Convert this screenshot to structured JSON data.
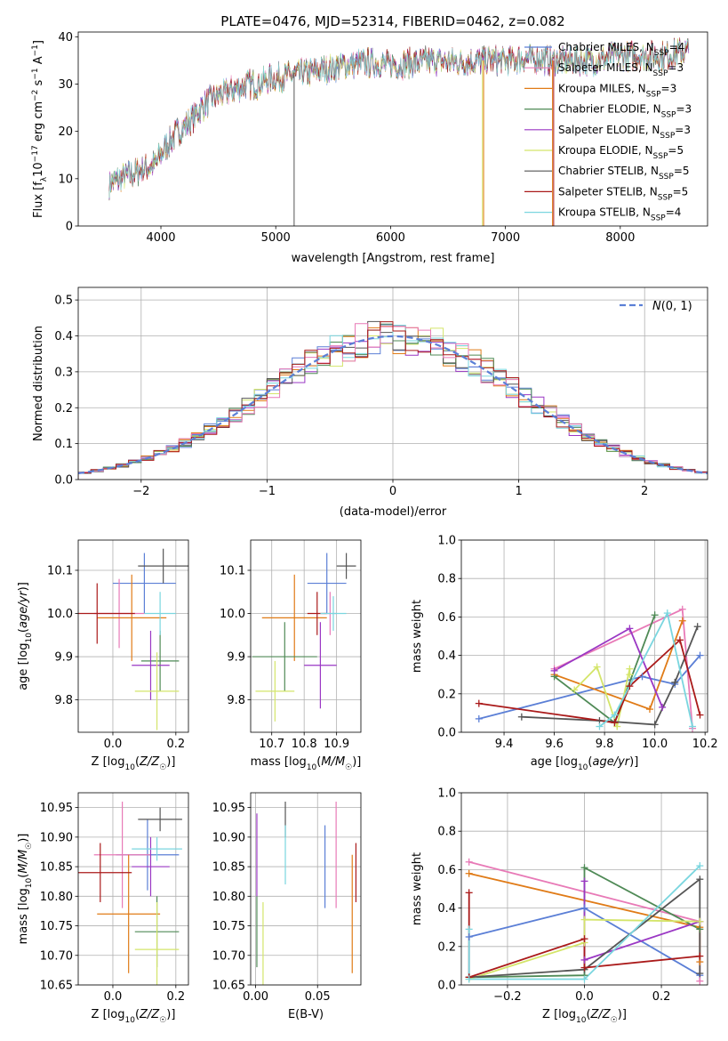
{
  "figure": {
    "title": "PLATE=0476, MJD=52314, FIBERID=0462, z=0.082"
  },
  "colors": {
    "chabrier_miles": "#5b7fd6",
    "salpeter_miles": "#e87ab7",
    "kroupa_miles": "#e07b17",
    "chabrier_elodie": "#4f8a56",
    "salpeter_elodie": "#9a37c4",
    "kroupa_elodie": "#d4e56a",
    "chabrier_stelib": "#555555",
    "salpeter_stelib": "#aa1a1a",
    "kroupa_stelib": "#7ad6df",
    "gauss": "#5b7fd6"
  },
  "chart_data": [
    {
      "id": "spectrum",
      "type": "line",
      "title": "PLATE=0476, MJD=52314, FIBERID=0462, z=0.082",
      "xlabel": "wavelength [Angstrom, rest frame]",
      "ylabel": "Flux [f_λ 10^-17 erg cm^-2 s^-1 A^-1]",
      "xlim": [
        3280,
        8760
      ],
      "ylim": [
        0,
        41
      ],
      "xticks": [
        4000,
        5000,
        6000,
        7000,
        8000
      ],
      "yticks": [
        0,
        10,
        20,
        30,
        40
      ],
      "legend": "top-right",
      "series": [
        {
          "name": "Chabrier MILES, N_SSP=4"
        },
        {
          "name": "Salpeter MILES, N_SSP=3"
        },
        {
          "name": "Kroupa MILES, N_SSP=3"
        },
        {
          "name": "Chabrier ELODIE, N_SSP=3"
        },
        {
          "name": "Salpeter ELODIE, N_SSP=3"
        },
        {
          "name": "Kroupa ELODIE, N_SSP=5"
        },
        {
          "name": "Chabrier STELIB, N_SSP=5"
        },
        {
          "name": "Salpeter STELIB, N_SSP=5"
        },
        {
          "name": "Kroupa STELIB, N_SSP=4"
        }
      ],
      "continuum": {
        "x": [
          3550,
          3650,
          3750,
          3850,
          3950,
          4050,
          4150,
          4250,
          4350,
          4450,
          4550,
          4650,
          4750,
          4850,
          4950,
          5050,
          5200,
          5400,
          5600,
          5800,
          6000,
          6200,
          6400,
          6600,
          6800,
          7000,
          7200,
          7400,
          7600,
          7800,
          8000,
          8200,
          8400,
          8600
        ],
        "y": [
          9,
          10,
          11,
          12,
          13,
          17,
          20,
          22,
          25,
          27,
          28,
          29,
          30,
          30,
          31,
          31.5,
          32,
          33,
          34,
          34.5,
          34,
          34.5,
          35,
          34.5,
          35,
          35,
          35.5,
          35,
          35,
          35,
          36,
          36,
          36,
          37
        ]
      }
    },
    {
      "id": "residuals",
      "type": "histogram",
      "xlabel": "(data-model)/error",
      "ylabel": "Normed distribution",
      "xlim": [
        -2.5,
        2.5
      ],
      "ylim": [
        0,
        0.535
      ],
      "xticks": [
        -2,
        -1,
        0,
        1,
        2
      ],
      "yticks": [
        0.0,
        0.1,
        0.2,
        0.3,
        0.4,
        0.5
      ],
      "grid": true,
      "legend": "top-right",
      "legend_label": "N(0,1)",
      "bin_width": 0.1
    },
    {
      "id": "age_Z",
      "type": "errorbar",
      "xlabel": "Z [log10(Z/Z☉)]",
      "ylabel": "age [log10(age/yr)]",
      "xlim": [
        -0.11,
        0.24
      ],
      "ylim": [
        9.725,
        10.17
      ],
      "xticks": [
        0.0,
        0.2
      ],
      "yticks": [
        9.8,
        9.9,
        10.0,
        10.1
      ],
      "grid": true,
      "points": [
        {
          "s": "chabrier_miles",
          "x": 0.1,
          "xe": 0.1,
          "y": 10.07,
          "ye": 0.07
        },
        {
          "s": "salpeter_miles",
          "x": 0.02,
          "xe": 0.08,
          "y": 10.0,
          "ye": 0.08
        },
        {
          "s": "kroupa_miles",
          "x": 0.06,
          "xe": 0.11,
          "y": 9.99,
          "ye": 0.1
        },
        {
          "s": "chabrier_elodie",
          "x": 0.15,
          "xe": 0.06,
          "y": 9.89,
          "ye": 0.07
        },
        {
          "s": "salpeter_elodie",
          "x": 0.12,
          "xe": 0.06,
          "y": 9.88,
          "ye": 0.08
        },
        {
          "s": "kroupa_elodie",
          "x": 0.14,
          "xe": 0.07,
          "y": 9.82,
          "ye": 0.09
        },
        {
          "s": "chabrier_stelib",
          "x": 0.16,
          "xe": 0.08,
          "y": 10.11,
          "ye": 0.04
        },
        {
          "s": "salpeter_stelib",
          "x": -0.05,
          "xe": 0.12,
          "y": 10.0,
          "ye": 0.07
        },
        {
          "s": "kroupa_stelib",
          "x": 0.15,
          "xe": 0.05,
          "y": 10.0,
          "ye": 0.05
        }
      ]
    },
    {
      "id": "age_mass",
      "type": "errorbar",
      "xlabel": "mass [log10(M/M☉)]",
      "ylabel": "",
      "xlim": [
        10.635,
        10.975
      ],
      "ylim": [
        9.725,
        10.17
      ],
      "xticks": [
        10.7,
        10.8,
        10.9
      ],
      "yticks": [
        9.8,
        9.9,
        10.0,
        10.1
      ],
      "grid": true,
      "points": [
        {
          "s": "chabrier_miles",
          "x": 10.87,
          "xe": 0.06,
          "y": 10.07,
          "ye": 0.07
        },
        {
          "s": "salpeter_miles",
          "x": 10.88,
          "xe": 0.02,
          "y": 10.0,
          "ye": 0.05
        },
        {
          "s": "kroupa_miles",
          "x": 10.77,
          "xe": 0.1,
          "y": 9.99,
          "ye": 0.1
        },
        {
          "s": "chabrier_elodie",
          "x": 10.74,
          "xe": 0.1,
          "y": 9.9,
          "ye": 0.08
        },
        {
          "s": "salpeter_elodie",
          "x": 10.85,
          "xe": 0.05,
          "y": 9.88,
          "ye": 0.1
        },
        {
          "s": "kroupa_elodie",
          "x": 10.71,
          "xe": 0.06,
          "y": 9.82,
          "ye": 0.07
        },
        {
          "s": "chabrier_stelib",
          "x": 10.93,
          "xe": 0.03,
          "y": 10.11,
          "ye": 0.03
        },
        {
          "s": "salpeter_stelib",
          "x": 10.84,
          "xe": 0.03,
          "y": 10.0,
          "ye": 0.05
        },
        {
          "s": "kroupa_stelib",
          "x": 10.89,
          "xe": 0.04,
          "y": 10.0,
          "ye": 0.04
        }
      ]
    },
    {
      "id": "weight_age",
      "type": "line",
      "xlabel": "age [log10(age/yr)]",
      "ylabel": "mass weight",
      "xlim": [
        9.23,
        10.21
      ],
      "ylim": [
        0,
        1
      ],
      "xticks": [
        9.4,
        9.6,
        9.8,
        10.0,
        10.2
      ],
      "yticks": [
        0.0,
        0.2,
        0.4,
        0.6,
        0.8,
        1.0
      ],
      "grid": true,
      "series": [
        {
          "s": "chabrier_miles",
          "x": [
            9.3,
            9.95,
            10.08,
            10.18
          ],
          "y": [
            0.07,
            0.29,
            0.25,
            0.4
          ]
        },
        {
          "s": "salpeter_miles",
          "x": [
            9.6,
            10.11,
            10.15
          ],
          "y": [
            0.33,
            0.64,
            0.02
          ]
        },
        {
          "s": "kroupa_miles",
          "x": [
            9.6,
            9.98,
            10.11
          ],
          "y": [
            0.3,
            0.12,
            0.58
          ]
        },
        {
          "s": "chabrier_elodie",
          "x": [
            9.6,
            9.84,
            10.0
          ],
          "y": [
            0.29,
            0.05,
            0.61
          ]
        },
        {
          "s": "salpeter_elodie",
          "x": [
            9.6,
            9.9,
            10.03
          ],
          "y": [
            0.32,
            0.54,
            0.13
          ]
        },
        {
          "s": "kroupa_elodie",
          "x": [
            9.68,
            9.77,
            9.85,
            9.9,
            9.9
          ],
          "y": [
            0.22,
            0.34,
            0.03,
            0.33,
            0.3
          ]
        },
        {
          "s": "chabrier_stelib",
          "x": [
            9.47,
            9.78,
            10.0,
            10.08,
            10.17
          ],
          "y": [
            0.08,
            0.06,
            0.04,
            0.26,
            0.55
          ]
        },
        {
          "s": "salpeter_stelib",
          "x": [
            9.3,
            9.84,
            9.9,
            10.1,
            10.18
          ],
          "y": [
            0.15,
            0.05,
            0.24,
            0.48,
            0.09
          ]
        },
        {
          "s": "kroupa_stelib",
          "x": [
            9.78,
            9.84,
            10.05,
            10.15
          ],
          "y": [
            0.03,
            0.09,
            0.62,
            0.03
          ]
        }
      ]
    },
    {
      "id": "mass_Z",
      "type": "errorbar",
      "xlabel": "Z [log10(Z/Z☉)]",
      "ylabel": "mass [log10(M/M☉)]",
      "xlim": [
        -0.11,
        0.24
      ],
      "ylim": [
        10.65,
        10.975
      ],
      "xticks": [
        0.0,
        0.2
      ],
      "yticks": [
        10.65,
        10.7,
        10.75,
        10.8,
        10.85,
        10.9,
        10.95
      ],
      "grid": true,
      "points": [
        {
          "s": "chabrier_miles",
          "x": 0.11,
          "xe": 0.1,
          "y": 10.87,
          "ye": 0.06
        },
        {
          "s": "salpeter_miles",
          "x": 0.03,
          "xe": 0.09,
          "y": 10.87,
          "ye": 0.09
        },
        {
          "s": "kroupa_miles",
          "x": 0.05,
          "xe": 0.1,
          "y": 10.77,
          "ye": 0.1
        },
        {
          "s": "chabrier_elodie",
          "x": 0.14,
          "xe": 0.07,
          "y": 10.74,
          "ye": 0.06
        },
        {
          "s": "salpeter_elodie",
          "x": 0.12,
          "xe": 0.06,
          "y": 10.85,
          "ye": 0.05
        },
        {
          "s": "kroupa_elodie",
          "x": 0.14,
          "xe": 0.07,
          "y": 10.71,
          "ye": 0.08
        },
        {
          "s": "chabrier_stelib",
          "x": 0.15,
          "xe": 0.07,
          "y": 10.93,
          "ye": 0.02
        },
        {
          "s": "salpeter_stelib",
          "x": -0.04,
          "xe": 0.1,
          "y": 10.84,
          "ye": 0.05
        },
        {
          "s": "kroupa_stelib",
          "x": 0.14,
          "xe": 0.08,
          "y": 10.88,
          "ye": 0.02
        }
      ]
    },
    {
      "id": "mass_ebv",
      "type": "errorbar",
      "xlabel": "E(B-V)",
      "ylabel": "",
      "xlim": [
        -0.004,
        0.085
      ],
      "ylim": [
        10.65,
        10.975
      ],
      "xticks": [
        0.0,
        0.05
      ],
      "yticks": [
        10.65,
        10.7,
        10.75,
        10.8,
        10.85,
        10.9,
        10.95
      ],
      "grid": true,
      "points": [
        {
          "s": "chabrier_miles",
          "x": 0.056,
          "xe": 0,
          "y": 10.85,
          "ye": 0.07
        },
        {
          "s": "salpeter_miles",
          "x": 0.065,
          "xe": 0,
          "y": 10.87,
          "ye": 0.09
        },
        {
          "s": "kroupa_miles",
          "x": 0.078,
          "xe": 0,
          "y": 10.77,
          "ye": 0.1
        },
        {
          "s": "chabrier_elodie",
          "x": 0.001,
          "xe": 0,
          "y": 10.74,
          "ye": 0.06
        },
        {
          "s": "salpeter_elodie",
          "x": 0.001,
          "xe": 0,
          "y": 10.87,
          "ye": 0.07
        },
        {
          "s": "kroupa_elodie",
          "x": 0.006,
          "xe": 0,
          "y": 10.71,
          "ye": 0.08
        },
        {
          "s": "chabrier_stelib",
          "x": 0.024,
          "xe": 0,
          "y": 10.93,
          "ye": 0.03
        },
        {
          "s": "salpeter_stelib",
          "x": 0.081,
          "xe": 0,
          "y": 10.84,
          "ye": 0.05
        },
        {
          "s": "kroupa_stelib",
          "x": 0.024,
          "xe": 0,
          "y": 10.87,
          "ye": 0.05
        }
      ]
    },
    {
      "id": "weight_Z",
      "type": "line",
      "xlabel": "Z [log10(Z/Z☉)]",
      "ylabel": "mass weight",
      "xlim": [
        -0.32,
        0.32
      ],
      "ylim": [
        0,
        1
      ],
      "xticks": [
        -0.2,
        0.0,
        0.2
      ],
      "yticks": [
        0.0,
        0.2,
        0.4,
        0.6,
        0.8,
        1.0
      ],
      "grid": true,
      "series": [
        {
          "s": "chabrier_miles",
          "x": [
            -0.3,
            0.0,
            0.3
          ],
          "y": [
            0.25,
            0.4,
            0.05
          ]
        },
        {
          "s": "salpeter_miles",
          "x": [
            -0.3,
            0.3,
            0.3
          ],
          "y": [
            0.64,
            0.33,
            0.02
          ]
        },
        {
          "s": "kroupa_miles",
          "x": [
            -0.3,
            0.3,
            0.3
          ],
          "y": [
            0.58,
            0.3,
            0.12
          ]
        },
        {
          "s": "chabrier_elodie",
          "x": [
            -0.3,
            0.0,
            0.0,
            0.3
          ],
          "y": [
            0.04,
            0.05,
            0.61,
            0.29
          ]
        },
        {
          "s": "salpeter_elodie",
          "x": [
            0.0,
            0.0,
            0.3
          ],
          "y": [
            0.54,
            0.13,
            0.33
          ]
        },
        {
          "s": "kroupa_elodie",
          "x": [
            -0.3,
            0.0,
            0.0,
            0.3
          ],
          "y": [
            0.03,
            0.22,
            0.34,
            0.33
          ]
        },
        {
          "s": "chabrier_stelib",
          "x": [
            -0.3,
            0.0,
            0.3,
            0.3
          ],
          "y": [
            0.04,
            0.08,
            0.55,
            0.06
          ]
        },
        {
          "s": "salpeter_stelib",
          "x": [
            -0.3,
            -0.3,
            0.0,
            0.0,
            0.3
          ],
          "y": [
            0.48,
            0.04,
            0.24,
            0.09,
            0.15
          ]
        },
        {
          "s": "kroupa_stelib",
          "x": [
            -0.3,
            -0.3,
            0.0,
            0.3
          ],
          "y": [
            0.29,
            0.03,
            0.03,
            0.62
          ]
        }
      ]
    }
  ]
}
